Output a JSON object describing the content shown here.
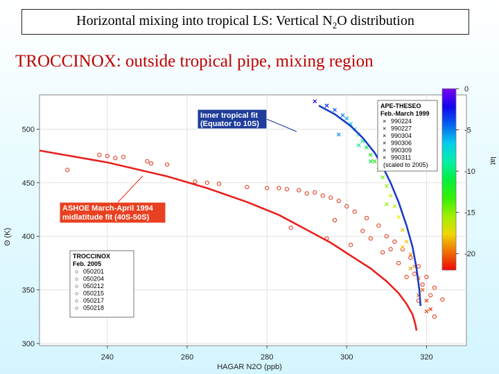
{
  "title": {
    "pre": "Horizontal mixing into tropical LS:  Vertical N",
    "sub": "2",
    "post": "O distribution"
  },
  "subtitle": "TROCCINOX:  outside tropical pipe, mixing region",
  "colors": {
    "red_fit": "#e8201c",
    "blue_fit": "#1a3cc8",
    "annot_inner_bg": "#1f3d99",
    "annot_ashoe_bg": "#e84020",
    "circle_marker": "#e03010"
  },
  "chart_data": {
    "type": "scatter",
    "xlabel": "HAGAR N2O (ppb)",
    "ylabel": "Θ (K)",
    "xlim": [
      223,
      330
    ],
    "ylim": [
      298,
      532
    ],
    "xticks": [
      240,
      260,
      280,
      300,
      320
    ],
    "yticks": [
      300,
      350,
      400,
      450,
      500
    ],
    "ytick_labels": [
      "300",
      "350",
      "400",
      "450",
      "500"
    ],
    "colorbar": {
      "label": "lat",
      "ticks": [
        0,
        -5,
        -10,
        -15,
        -20
      ],
      "range": [
        0,
        -22
      ],
      "colormap": "rainbow"
    },
    "fits": [
      {
        "name": "ASHOE March-April 1994 midlatitude fit (40S-50S)",
        "color": "red",
        "x": [
          223,
          240,
          255,
          265,
          275,
          283,
          290,
          296,
          301,
          306,
          310,
          313,
          315,
          316.5,
          317.2,
          317.5
        ],
        "y": [
          480,
          469,
          456,
          445,
          432,
          420,
          406,
          394,
          382,
          370,
          358,
          347,
          337,
          327,
          318,
          312
        ]
      },
      {
        "name": "Inner tropical fit (Equator to 10S)",
        "color": "blue",
        "x": [
          293,
          297,
          301,
          304,
          307,
          309,
          311,
          313,
          315,
          316.5,
          317.5,
          318.2,
          318.5
        ],
        "y": [
          522,
          514,
          503,
          492,
          478,
          465,
          450,
          432,
          410,
          390,
          370,
          350,
          335
        ]
      }
    ],
    "annotations": {
      "inner_fit": [
        "Inner tropical fit",
        "(Equator to 10S)"
      ],
      "ashoe_fit": [
        "ASHOE March-April 1994",
        "midlatitude fit (40S-50S)"
      ]
    },
    "legends": [
      {
        "title": "APE-THESEO",
        "subtitle": "Feb.-March 1999",
        "marker": "×",
        "entries": [
          "990224",
          "990227",
          "990304",
          "990306",
          "990309",
          "990311"
        ],
        "note": "(scaled to 2005)"
      },
      {
        "title": "TROCCINOX",
        "subtitle": "Feb. 2005",
        "marker": "○",
        "entries": [
          "050201",
          "050204",
          "050212",
          "050215",
          "050217",
          "050218"
        ]
      }
    ],
    "series": [
      {
        "marker": "circle",
        "x": [
          230,
          238,
          240,
          242,
          244,
          250,
          251,
          255,
          262,
          265,
          268,
          275,
          280,
          283,
          285,
          288,
          290,
          292,
          294,
          296,
          298,
          300,
          302,
          305,
          308,
          310,
          312,
          314,
          316,
          318,
          320,
          322,
          324,
          295,
          301,
          304,
          309,
          313,
          317,
          319,
          321,
          286,
          297,
          306,
          311,
          315,
          318,
          322
        ],
        "y": [
          462,
          476,
          475,
          473,
          474,
          470,
          468,
          467,
          451,
          450,
          449,
          446,
          445,
          445,
          444,
          443,
          440,
          441,
          438,
          436,
          433,
          428,
          423,
          417,
          410,
          400,
          395,
          388,
          380,
          372,
          362,
          352,
          341,
          398,
          392,
          405,
          385,
          375,
          365,
          355,
          345,
          408,
          415,
          398,
          388,
          362,
          340,
          325
        ]
      },
      {
        "marker": "x",
        "x": [
          292,
          295,
          297,
          299,
          300,
          301,
          302,
          303,
          304,
          305,
          306,
          307,
          308,
          309,
          310,
          311,
          312,
          313,
          314,
          315,
          316,
          317,
          318,
          319,
          320,
          321,
          298,
          303,
          306,
          310,
          314,
          316,
          318,
          320
        ],
        "y": [
          526,
          522,
          518,
          513,
          510,
          505,
          500,
          495,
          489,
          483,
          476,
          470,
          462,
          455,
          447,
          438,
          428,
          418,
          406,
          395,
          383,
          372,
          361,
          350,
          340,
          332,
          495,
          485,
          470,
          430,
          390,
          370,
          345,
          330
        ],
        "lat": [
          -2,
          -3,
          -4,
          -5,
          -6,
          -7,
          -8,
          -9,
          -10,
          -11,
          -12,
          -13,
          -14,
          -14,
          -15,
          -16,
          -16,
          -17,
          -18,
          -18,
          -19,
          -19,
          -20,
          -20,
          -21,
          -21,
          -5,
          -9,
          -11,
          -15,
          -18,
          -19,
          -20,
          -21
        ]
      }
    ]
  }
}
